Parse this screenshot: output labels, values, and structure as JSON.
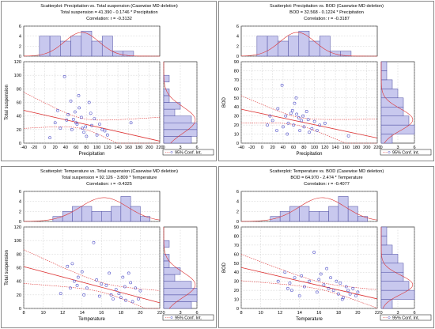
{
  "chart_data": [
    {
      "type": "scatter",
      "title": "Scatterplot: Precipitation vs. Total suspension  (Casewise MD deletion)",
      "equation": "Total suspension = 41.390 - 0.1746  * Precipitation",
      "correlation": "Correlation: r =  -0.3132",
      "xlabel": "Precipitation",
      "ylabel": "Total suspension",
      "xlim": [
        -40,
        220
      ],
      "ylim": [
        0,
        120
      ],
      "xticks": [
        -40,
        -20,
        0,
        20,
        40,
        60,
        80,
        100,
        120,
        140,
        160,
        180,
        200,
        220
      ],
      "yticks": [
        0,
        20,
        40,
        60,
        80,
        100,
        120
      ],
      "hist_top_ticks": [
        0,
        2,
        4,
        6
      ],
      "hist_side_ticks": [
        0,
        3,
        6
      ],
      "legend": "95% Conf. Int.",
      "fit": {
        "intercept": 41.39,
        "slope": -0.1746
      },
      "points": [
        [
          25,
          48
        ],
        [
          38,
          98
        ],
        [
          45,
          42
        ],
        [
          52,
          20
        ],
        [
          55,
          35
        ],
        [
          60,
          30
        ],
        [
          62,
          28
        ],
        [
          65,
          70
        ],
        [
          66,
          52
        ],
        [
          70,
          38
        ],
        [
          72,
          22
        ],
        [
          75,
          16
        ],
        [
          80,
          10
        ],
        [
          85,
          60
        ],
        [
          88,
          44
        ],
        [
          95,
          36
        ],
        [
          100,
          12
        ],
        [
          105,
          28
        ],
        [
          110,
          20
        ],
        [
          115,
          18
        ],
        [
          120,
          12
        ],
        [
          165,
          30
        ],
        [
          42,
          34
        ],
        [
          30,
          22
        ],
        [
          90,
          26
        ],
        [
          78,
          24
        ],
        [
          50,
          62
        ],
        [
          20,
          30
        ],
        [
          10,
          8
        ],
        [
          58,
          46
        ]
      ],
      "hist_top": {
        "bins": [
          -10,
          10,
          30,
          50,
          70,
          90,
          110,
          130,
          150,
          170
        ],
        "counts": [
          4,
          4,
          3,
          4,
          5,
          3,
          4,
          1,
          1
        ]
      },
      "hist_side": {
        "bins": [
          0,
          10,
          20,
          30,
          40,
          50,
          60,
          70,
          80,
          90,
          100
        ],
        "counts": [
          5,
          6,
          6,
          5,
          2,
          3,
          1,
          1,
          0,
          1
        ]
      }
    },
    {
      "type": "scatter",
      "title": "Scatterplot: Precipitation vs. BOD  (Casewise MD deletion)",
      "equation": "BOD     = 32.568 - 0.1224  * Precipitation",
      "correlation": "Correlation: r =  -0.3187",
      "xlabel": "Precipitation",
      "ylabel": "BOD",
      "xlim": [
        -40,
        220
      ],
      "ylim": [
        0,
        90
      ],
      "xticks": [
        -40,
        -20,
        0,
        20,
        40,
        60,
        80,
        100,
        120,
        140,
        160,
        180,
        200,
        220
      ],
      "yticks": [
        0,
        10,
        20,
        30,
        40,
        50,
        60,
        70,
        80,
        90
      ],
      "hist_top_ticks": [
        0,
        2,
        4,
        6
      ],
      "hist_side_ticks": [
        0,
        3,
        6
      ],
      "legend": "95% Conf. Int.",
      "fit": {
        "intercept": 32.568,
        "slope": -0.1224
      },
      "points": [
        [
          20,
          25
        ],
        [
          30,
          38
        ],
        [
          38,
          64
        ],
        [
          45,
          30
        ],
        [
          50,
          22
        ],
        [
          55,
          33
        ],
        [
          60,
          20
        ],
        [
          62,
          44
        ],
        [
          66,
          32
        ],
        [
          70,
          28
        ],
        [
          72,
          14
        ],
        [
          75,
          25
        ],
        [
          80,
          18
        ],
        [
          85,
          35
        ],
        [
          88,
          26
        ],
        [
          95,
          16
        ],
        [
          100,
          24
        ],
        [
          105,
          14
        ],
        [
          110,
          20
        ],
        [
          120,
          22
        ],
        [
          165,
          8
        ],
        [
          28,
          14
        ],
        [
          40,
          18
        ],
        [
          10,
          20
        ],
        [
          90,
          12
        ],
        [
          58,
          36
        ],
        [
          48,
          10
        ],
        [
          78,
          30
        ],
        [
          65,
          50
        ],
        [
          15,
          30
        ]
      ],
      "hist_top": {
        "bins": [
          -10,
          10,
          30,
          50,
          70,
          90,
          110,
          130,
          150,
          170
        ],
        "counts": [
          4,
          4,
          3,
          4,
          5,
          3,
          4,
          1,
          1
        ]
      },
      "hist_side": {
        "bins": [
          0,
          10,
          20,
          30,
          40,
          50,
          60,
          70,
          80,
          90
        ],
        "counts": [
          2,
          6,
          5,
          4,
          4,
          3,
          2,
          1,
          1
        ]
      }
    },
    {
      "type": "scatter",
      "title": "Scatterplot: Temperature vs. Total suspension  (Casewise MD deletion)",
      "equation": "Total suspension = 92.126 - 3.809  * Temperature",
      "correlation": "Correlation: r =  -0.4325",
      "xlabel": "Temperature",
      "ylabel": "Total suspension",
      "xlim": [
        8,
        22
      ],
      "ylim": [
        0,
        120
      ],
      "xticks": [
        8,
        10,
        12,
        14,
        16,
        18,
        20,
        22
      ],
      "yticks": [
        0,
        20,
        40,
        60,
        80,
        100,
        120
      ],
      "hist_top_ticks": [
        0,
        2,
        4,
        6
      ],
      "hist_side_ticks": [
        0,
        3,
        6
      ],
      "legend": "95% Conf. Int.",
      "fit": {
        "intercept": 92.126,
        "slope": -3.809
      },
      "points": [
        [
          11.8,
          22
        ],
        [
          12.5,
          62
        ],
        [
          13,
          66
        ],
        [
          13.2,
          40
        ],
        [
          13.5,
          34
        ],
        [
          14,
          54
        ],
        [
          14.5,
          30
        ],
        [
          15.2,
          97
        ],
        [
          15.5,
          42
        ],
        [
          16,
          36
        ],
        [
          16.5,
          34
        ],
        [
          17,
          20
        ],
        [
          17.2,
          14
        ],
        [
          17.5,
          28
        ],
        [
          18,
          16
        ],
        [
          18.2,
          46
        ],
        [
          18.5,
          12
        ],
        [
          18.8,
          52
        ],
        [
          19,
          38
        ],
        [
          19.2,
          10
        ],
        [
          19.5,
          30
        ],
        [
          20,
          26
        ],
        [
          14.2,
          20
        ],
        [
          16.8,
          52
        ],
        [
          18.4,
          32
        ],
        [
          17.8,
          22
        ],
        [
          12.8,
          30
        ],
        [
          15.8,
          18
        ],
        [
          19.8,
          14
        ],
        [
          13.6,
          46
        ]
      ],
      "hist_top": {
        "bins": [
          11,
          12,
          13,
          14,
          15,
          16,
          17,
          18,
          19,
          20,
          21
        ],
        "counts": [
          1,
          2,
          3,
          3,
          2,
          2,
          3,
          5,
          3,
          1
        ]
      },
      "hist_side": {
        "bins": [
          0,
          10,
          20,
          30,
          40,
          50,
          60,
          70,
          80,
          90,
          100
        ],
        "counts": [
          5,
          6,
          6,
          5,
          2,
          3,
          1,
          1,
          0,
          1
        ]
      }
    },
    {
      "type": "scatter",
      "title": "Scatterplot: Temperature vs. BOD  (Casewise MD deletion)",
      "equation": "BOD     = 64.970 - 2.474  * Temperature",
      "correlation": "Correlation: r =  -0.4077",
      "xlabel": "Temperature",
      "ylabel": "BOD",
      "xlim": [
        8,
        22
      ],
      "ylim": [
        0,
        90
      ],
      "xticks": [
        8,
        10,
        12,
        14,
        16,
        18,
        20,
        22
      ],
      "yticks": [
        0,
        10,
        20,
        30,
        40,
        50,
        60,
        70,
        80,
        90
      ],
      "hist_top_ticks": [
        0,
        2,
        4,
        6
      ],
      "hist_side_ticks": [
        0,
        3,
        6
      ],
      "legend": "95% Conf. Int.",
      "fit": {
        "intercept": 64.97,
        "slope": -2.474
      },
      "points": [
        [
          11.8,
          30
        ],
        [
          12.5,
          40
        ],
        [
          13,
          28
        ],
        [
          13.5,
          34
        ],
        [
          14,
          14
        ],
        [
          14.5,
          24
        ],
        [
          15,
          30
        ],
        [
          15.5,
          62
        ],
        [
          16,
          32
        ],
        [
          16.5,
          26
        ],
        [
          17,
          22
        ],
        [
          17.5,
          20
        ],
        [
          18,
          16
        ],
        [
          18.2,
          28
        ],
        [
          18.5,
          12
        ],
        [
          18.8,
          24
        ],
        [
          19,
          20
        ],
        [
          19.2,
          16
        ],
        [
          19.5,
          22
        ],
        [
          20,
          18
        ],
        [
          14.2,
          36
        ],
        [
          16.8,
          44
        ],
        [
          17.8,
          30
        ],
        [
          13.2,
          20
        ],
        [
          15.8,
          18
        ],
        [
          19.8,
          14
        ],
        [
          18.4,
          10
        ],
        [
          12.8,
          22
        ],
        [
          16.2,
          38
        ],
        [
          17.2,
          34
        ]
      ],
      "hist_top": {
        "bins": [
          11,
          12,
          13,
          14,
          15,
          16,
          17,
          18,
          19,
          20,
          21
        ],
        "counts": [
          1,
          2,
          3,
          3,
          2,
          2,
          3,
          5,
          3,
          1
        ]
      },
      "hist_side": {
        "bins": [
          0,
          10,
          20,
          30,
          40,
          50,
          60,
          70,
          80,
          90
        ],
        "counts": [
          2,
          6,
          5,
          4,
          4,
          3,
          2,
          1,
          1
        ]
      }
    }
  ],
  "colors": {
    "hist_fill": "#c8c8ee",
    "hist_stroke": "#4a4aa0",
    "point": "#5050c8",
    "fit": "#dd3333",
    "grid": "#bfbfbf"
  }
}
